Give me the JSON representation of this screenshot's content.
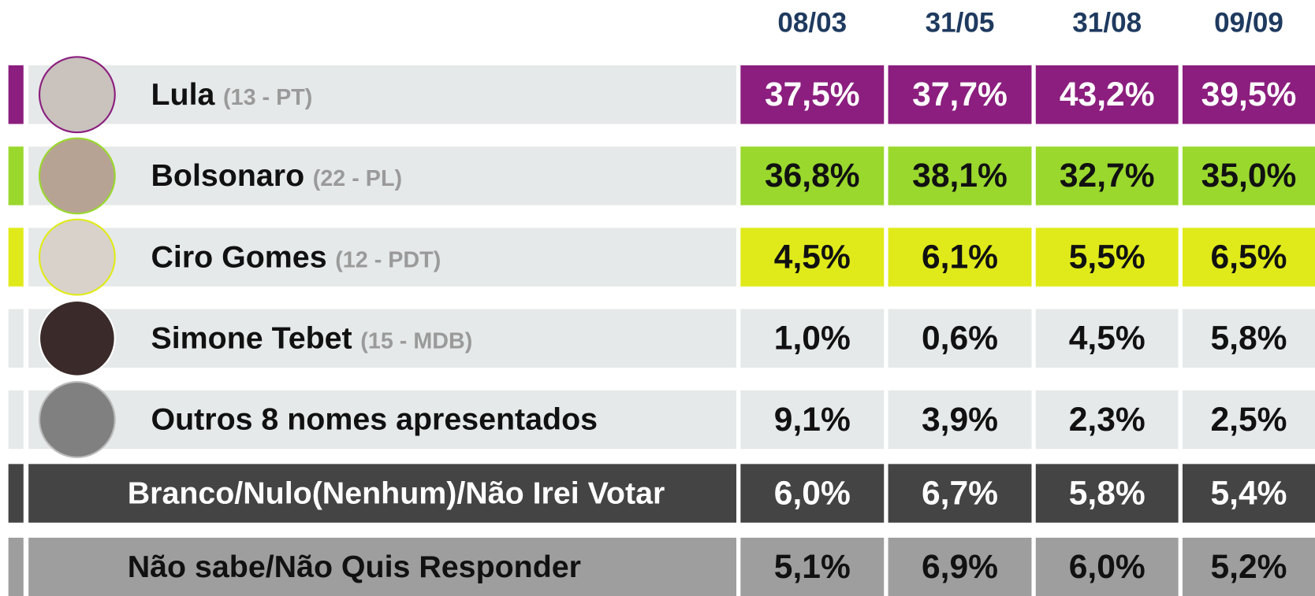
{
  "header": {
    "dates": [
      "08/03",
      "31/05",
      "31/08",
      "09/09"
    ]
  },
  "rows": [
    {
      "name": "Lula",
      "party": "(13 - PT)",
      "values": [
        "37,5%",
        "37,7%",
        "43,2%",
        "39,5%"
      ]
    },
    {
      "name": "Bolsonaro",
      "party": "(22 - PL)",
      "values": [
        "36,8%",
        "38,1%",
        "32,7%",
        "35,0%"
      ]
    },
    {
      "name": "Ciro Gomes",
      "party": "(12 - PDT)",
      "values": [
        "4,5%",
        "6,1%",
        "5,5%",
        "6,5%"
      ]
    },
    {
      "name": "Simone Tebet",
      "party": "(15 - MDB)",
      "values": [
        "1,0%",
        "0,6%",
        "4,5%",
        "5,8%"
      ]
    },
    {
      "name": "Outros 8 nomes apresentados",
      "values": [
        "9,1%",
        "3,9%",
        "2,3%",
        "2,5%"
      ]
    },
    {
      "name": "Branco/Nulo(Nenhum)/Não Irei Votar",
      "values": [
        "6,0%",
        "6,7%",
        "5,8%",
        "5,4%"
      ]
    },
    {
      "name": "Não sabe/Não Quis Responder",
      "values": [
        "5,1%",
        "6,9%",
        "6,0%",
        "5,2%"
      ]
    }
  ]
}
